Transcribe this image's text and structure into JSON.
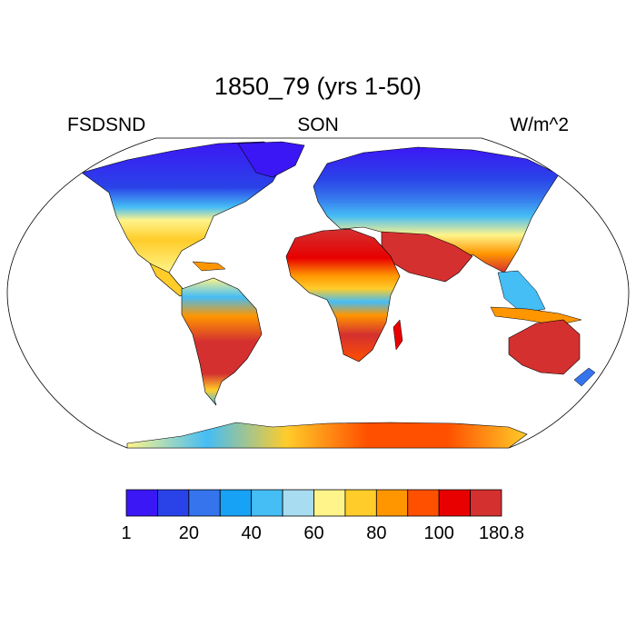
{
  "header": {
    "title": "1850_79 (yrs 1-50)",
    "left_label": "FSDSND",
    "center_label": "SON",
    "right_label": "W/m^2"
  },
  "map": {
    "projection": "robinson",
    "field": "downwelling shortwave flux, no dust (surface)",
    "ocean_fill": "none"
  },
  "colorbar": {
    "colors": [
      "#3c17f5",
      "#2a43e8",
      "#3574ec",
      "#17a2f5",
      "#45bdf5",
      "#a8dcf0",
      "#fff48a",
      "#ffcc2a",
      "#ff9600",
      "#ff5000",
      "#e80000",
      "#d43030"
    ],
    "tick_labels": [
      "1",
      "20",
      "40",
      "60",
      "80",
      "100",
      "180.8"
    ]
  }
}
